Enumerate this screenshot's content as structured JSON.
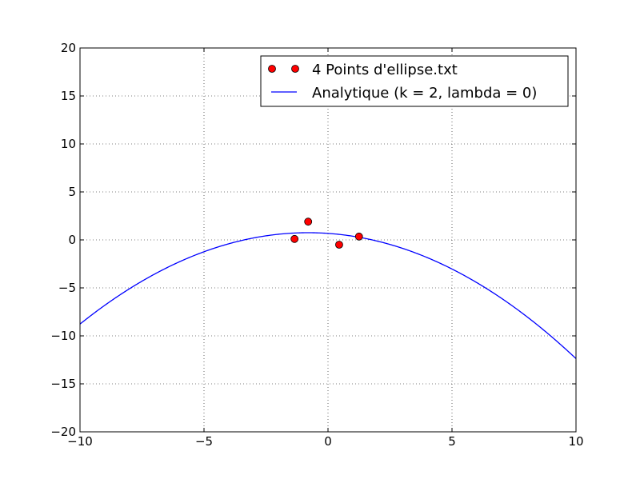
{
  "chart_data": {
    "type": "scatter",
    "title": "",
    "xlabel": "",
    "ylabel": "",
    "xlim": [
      -10,
      10
    ],
    "ylim": [
      -20,
      20
    ],
    "grid": true,
    "legend_position": "top-right",
    "x_ticks": [
      "−10",
      "−5",
      "0",
      "5",
      "10"
    ],
    "x_tick_values": [
      -10,
      -5,
      0,
      5,
      10
    ],
    "y_ticks": [
      "20",
      "15",
      "10",
      "5",
      "0",
      "−5",
      "−10",
      "−15",
      "−20"
    ],
    "y_tick_values": [
      20,
      15,
      10,
      5,
      0,
      -5,
      -10,
      -15,
      -20
    ],
    "series": [
      {
        "name": "4 Points d'ellipse.txt",
        "kind": "markers",
        "color": "#ff0000",
        "points": [
          {
            "x": -1.35,
            "y": 0.1
          },
          {
            "x": -0.8,
            "y": 1.9
          },
          {
            "x": 0.45,
            "y": -0.5
          },
          {
            "x": 1.25,
            "y": 0.35
          }
        ]
      },
      {
        "name": "Analytique (k = 2, lambda = 0)",
        "kind": "line",
        "color": "#0000ff",
        "function": "y = -0.1125*(x + 0.8)^2 + 0.75",
        "coefficients": {
          "a": -0.1125,
          "b": -0.18,
          "c": 0.678
        }
      }
    ]
  }
}
